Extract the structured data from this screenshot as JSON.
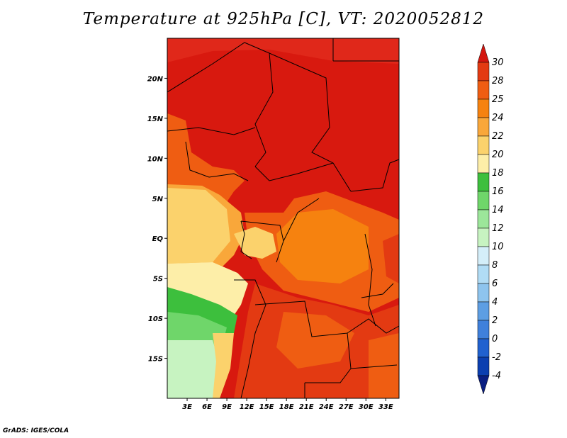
{
  "title": "Temperature at 925hPa [C], VT: 2020052812",
  "credit": "GrADS: IGES/COLA",
  "map": {
    "lon_range": [
      0,
      35
    ],
    "lat_range": [
      -20,
      25
    ],
    "x_tick_labels": [
      "3E",
      "6E",
      "9E",
      "12E",
      "15E",
      "18E",
      "21E",
      "24E",
      "27E",
      "30E",
      "33E"
    ],
    "y_tick_labels": [
      "20N",
      "15N",
      "10N",
      "5N",
      "EQ",
      "5S",
      "10S",
      "15S"
    ]
  },
  "colorbar": {
    "levels": [
      "30",
      "28",
      "25",
      "24",
      "22",
      "20",
      "18",
      "16",
      "14",
      "12",
      "10",
      "8",
      "6",
      "4",
      "2",
      "0",
      "-2",
      "-4"
    ],
    "colors": [
      "#d4160f",
      "#e33a12",
      "#ef5d12",
      "#f6820f",
      "#f9a73a",
      "#fbd26c",
      "#fdeea8",
      "#3dbf3d",
      "#6fd66a",
      "#9ce69a",
      "#c7f3c1",
      "#d4eef9",
      "#b1dcf5",
      "#8ec4ee",
      "#5d9ee3",
      "#3f80db",
      "#2061cf",
      "#0b3fb0",
      "#0a1f82"
    ]
  },
  "legend_note": "",
  "colors": {
    "very_hot": "#d8190f",
    "hot": "#e8401a",
    "warm": "#f3751a",
    "mild": "#f9a63a",
    "cool": "#fbd36d",
    "cooler": "#fdeea8",
    "green": "#3dbf3d",
    "light_green": "#9ce69a"
  }
}
